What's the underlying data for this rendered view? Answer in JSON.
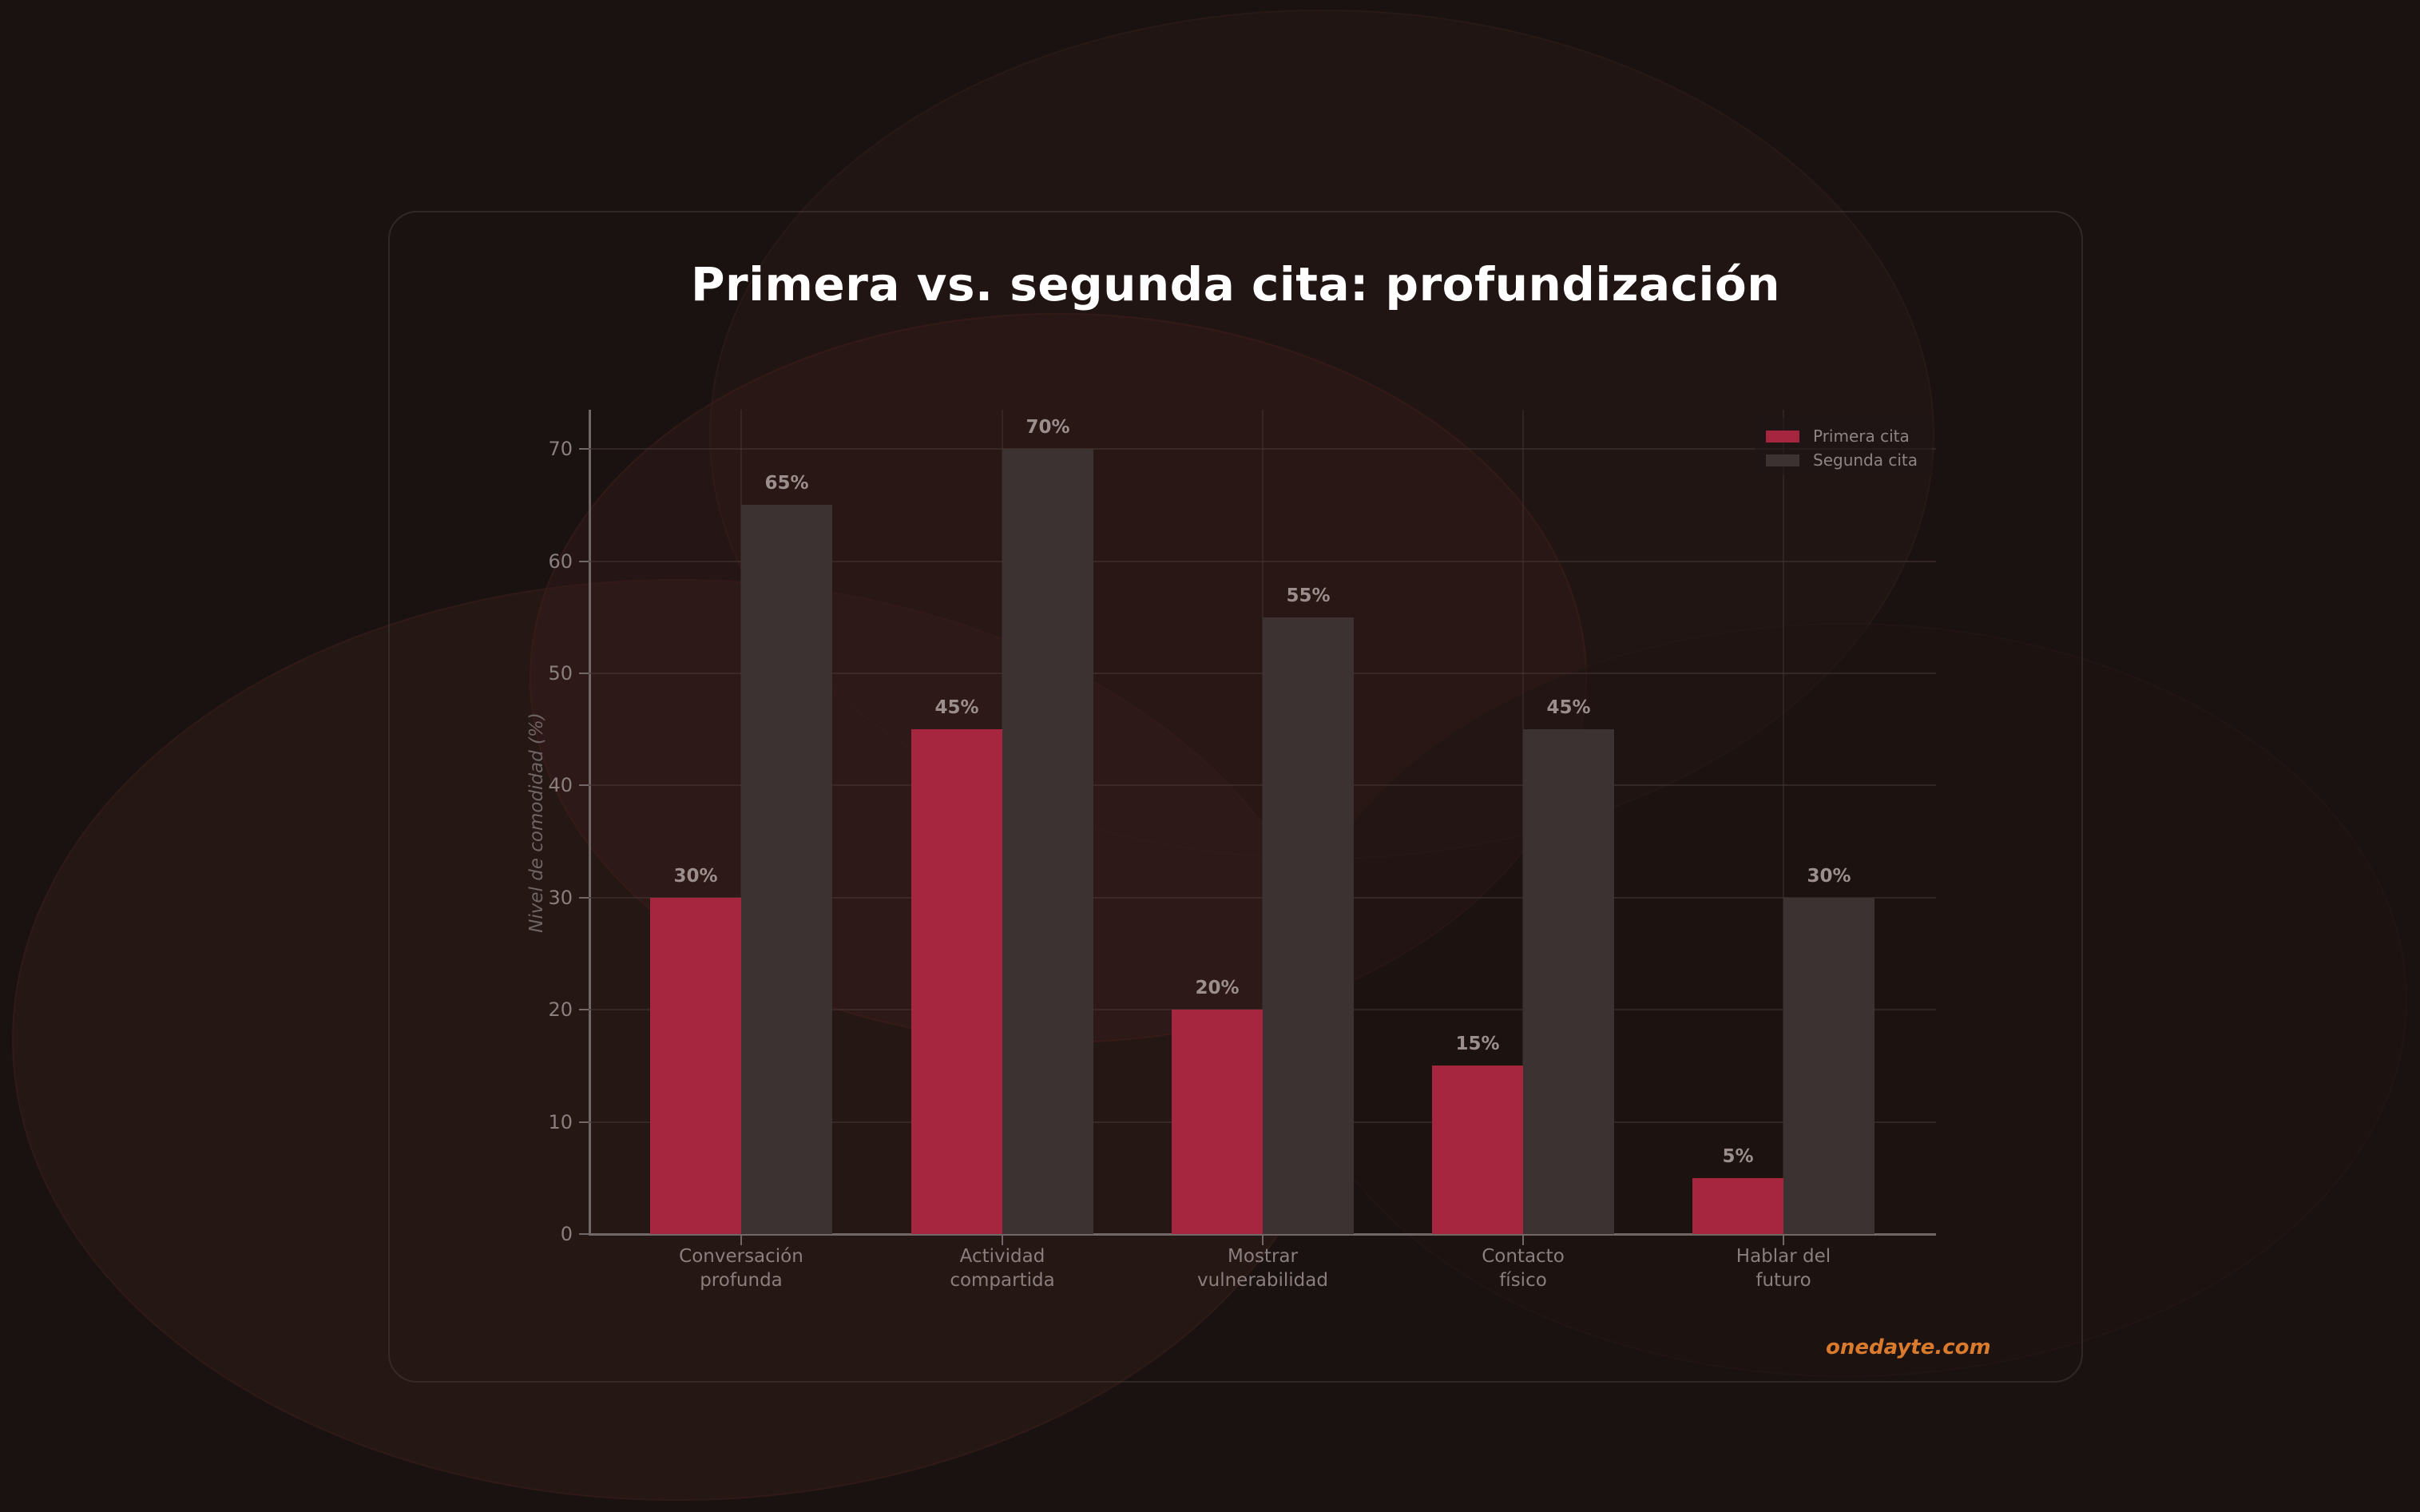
{
  "title": "Primera vs. segunda cita: profundización",
  "brand": "onedayte.com",
  "legend": {
    "items": [
      {
        "label": "Primera cita",
        "color": "#a6263f"
      },
      {
        "label": "Segunda cita",
        "color": "#3c3232"
      }
    ]
  },
  "axes": {
    "ylabel": "Nivel de comodidad (%)",
    "yticks": [
      "0",
      "10",
      "20",
      "30",
      "40",
      "50",
      "60",
      "70"
    ],
    "xticks": [
      [
        "Conversación",
        "profunda"
      ],
      [
        "Actividad",
        "compartida"
      ],
      [
        "Mostrar",
        "vulnerabilidad"
      ],
      [
        "Contacto",
        "físico"
      ],
      [
        "Hablar del",
        "futuro"
      ]
    ]
  },
  "bars": {
    "primera_labels": [
      "30%",
      "45%",
      "20%",
      "15%",
      "5%"
    ],
    "segunda_labels": [
      "65%",
      "70%",
      "55%",
      "45%",
      "30%"
    ]
  },
  "colors": {
    "background": "#1a1211",
    "primera": "#a6263f",
    "segunda": "#3c3232",
    "brand": "#d97a2c",
    "title": "#ffffff"
  },
  "chart_data": {
    "type": "bar",
    "title": "Primera vs. segunda cita: profundización",
    "xlabel": "",
    "ylabel": "Nivel de comodidad (%)",
    "categories": [
      "Conversación profunda",
      "Actividad compartida",
      "Mostrar vulnerabilidad",
      "Contacto físico",
      "Hablar del futuro"
    ],
    "series": [
      {
        "name": "Primera cita",
        "color": "#a6263f",
        "values": [
          30,
          45,
          20,
          15,
          5
        ]
      },
      {
        "name": "Segunda cita",
        "color": "#3c3232",
        "values": [
          65,
          70,
          55,
          45,
          30
        ]
      }
    ],
    "ylim": [
      0,
      73.5
    ],
    "yticks": [
      0,
      10,
      20,
      30,
      40,
      50,
      60,
      70
    ],
    "grid": true,
    "legend_position": "upper right",
    "data_labels": true,
    "annotations": [
      "onedayte.com"
    ]
  }
}
